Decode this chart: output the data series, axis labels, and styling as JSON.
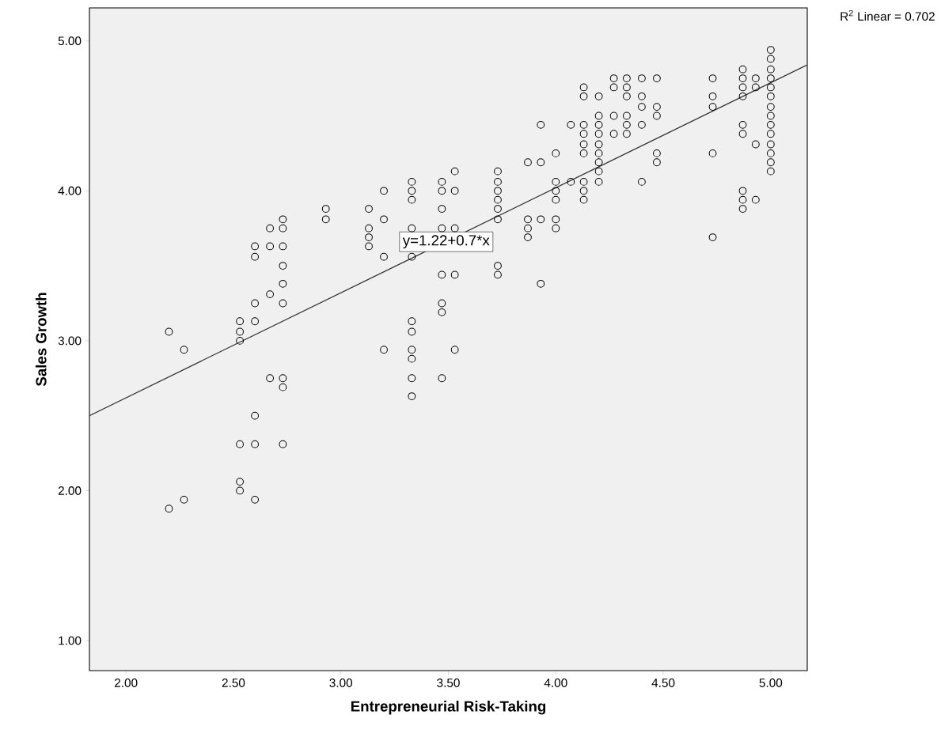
{
  "chart_data": {
    "type": "scatter",
    "xlabel": "Entrepreneurial Risk-Taking",
    "ylabel": "Sales Growth",
    "xlim": [
      1.83,
      5.17
    ],
    "ylim": [
      0.8,
      5.22
    ],
    "xticks": [
      {
        "value": 2,
        "label": "2.00"
      },
      {
        "value": 2.5,
        "label": "2.50"
      },
      {
        "value": 3,
        "label": "3.00"
      },
      {
        "value": 3.5,
        "label": "3.50"
      },
      {
        "value": 4,
        "label": "4.00"
      },
      {
        "value": 4.5,
        "label": "4.50"
      },
      {
        "value": 5,
        "label": "5.00"
      }
    ],
    "yticks": [
      {
        "value": 1,
        "label": "1.00"
      },
      {
        "value": 2,
        "label": "2.00"
      },
      {
        "value": 3,
        "label": "3.00"
      },
      {
        "value": 4,
        "label": "4.00"
      },
      {
        "value": 5,
        "label": "5.00"
      }
    ],
    "marker": "circle",
    "grid": false,
    "series": [
      {
        "color": "#000000",
        "x": [
          2.2,
          2.2,
          2.27,
          2.27,
          2.53,
          2.53,
          2.53,
          2.53,
          2.53,
          2.53,
          2.6,
          2.6,
          2.6,
          2.6,
          2.6,
          2.6,
          2.6,
          2.67,
          2.67,
          2.67,
          2.67,
          2.73,
          2.73,
          2.73,
          2.73,
          2.73,
          2.73,
          2.73,
          2.73,
          2.73,
          2.93,
          2.93,
          3.13,
          3.13,
          3.13,
          3.13,
          3.2,
          3.2,
          3.2,
          3.2,
          3.33,
          3.33,
          3.33,
          3.33,
          3.33,
          3.33,
          3.33,
          3.33,
          3.33,
          3.33,
          3.33,
          3.47,
          3.47,
          3.47,
          3.47,
          3.47,
          3.47,
          3.47,
          3.47,
          3.53,
          3.53,
          3.53,
          3.53,
          3.53,
          3.73,
          3.73,
          3.73,
          3.73,
          3.73,
          3.73,
          3.73,
          3.73,
          3.87,
          3.87,
          3.87,
          3.87,
          3.93,
          3.93,
          3.93,
          3.93,
          4.0,
          4.0,
          4.0,
          4.0,
          4.0,
          4.0,
          4.07,
          4.07,
          4.13,
          4.13,
          4.13,
          4.13,
          4.13,
          4.13,
          4.13,
          4.13,
          4.13,
          4.2,
          4.2,
          4.2,
          4.2,
          4.2,
          4.2,
          4.2,
          4.2,
          4.2,
          4.27,
          4.27,
          4.27,
          4.27,
          4.33,
          4.33,
          4.33,
          4.33,
          4.33,
          4.33,
          4.4,
          4.4,
          4.4,
          4.4,
          4.4,
          4.47,
          4.47,
          4.47,
          4.47,
          4.47,
          4.73,
          4.73,
          4.73,
          4.73,
          4.73,
          4.87,
          4.87,
          4.87,
          4.87,
          4.87,
          4.87,
          4.87,
          4.87,
          4.87,
          4.93,
          4.93,
          4.93,
          4.93,
          5.0,
          5.0,
          5.0,
          5.0,
          5.0,
          5.0,
          5.0,
          5.0,
          5.0,
          5.0,
          5.0,
          5.0,
          5.0,
          5.0
        ],
        "values": [
          3.06,
          1.88,
          2.94,
          1.94,
          3.13,
          3.06,
          3.0,
          2.31,
          2.06,
          2.0,
          3.63,
          3.56,
          3.25,
          3.13,
          2.5,
          2.31,
          1.94,
          3.75,
          3.63,
          3.31,
          2.75,
          3.81,
          3.75,
          3.63,
          3.5,
          3.38,
          3.25,
          2.75,
          2.69,
          2.31,
          3.88,
          3.81,
          3.88,
          3.75,
          3.69,
          3.63,
          4.0,
          3.81,
          3.56,
          2.94,
          4.06,
          4.0,
          3.94,
          3.75,
          3.56,
          3.13,
          3.06,
          2.94,
          2.88,
          2.75,
          2.63,
          4.06,
          4.0,
          3.88,
          3.75,
          3.44,
          3.25,
          3.19,
          2.75,
          4.13,
          4.0,
          3.75,
          3.44,
          2.94,
          4.13,
          4.06,
          4.0,
          3.94,
          3.88,
          3.81,
          3.5,
          3.44,
          4.19,
          3.81,
          3.75,
          3.69,
          4.44,
          4.19,
          3.81,
          3.38,
          4.25,
          4.06,
          4.0,
          3.94,
          3.81,
          3.75,
          4.44,
          4.06,
          4.69,
          4.63,
          4.44,
          4.38,
          4.31,
          4.25,
          4.06,
          4.0,
          3.94,
          4.63,
          4.5,
          4.44,
          4.38,
          4.31,
          4.25,
          4.19,
          4.13,
          4.06,
          4.75,
          4.69,
          4.5,
          4.38,
          4.75,
          4.69,
          4.63,
          4.5,
          4.44,
          4.38,
          4.75,
          4.63,
          4.56,
          4.44,
          4.06,
          4.75,
          4.56,
          4.5,
          4.25,
          4.19,
          4.75,
          4.63,
          4.56,
          4.25,
          3.69,
          4.81,
          4.75,
          4.69,
          4.63,
          4.44,
          4.38,
          4.0,
          3.94,
          3.88,
          4.75,
          4.69,
          4.31,
          3.94,
          4.94,
          4.88,
          4.81,
          4.75,
          4.69,
          4.63,
          4.56,
          4.5,
          4.44,
          4.38,
          4.31,
          4.25,
          4.19,
          4.13
        ]
      },
      {
        "type": "line",
        "marker": "none",
        "color": "#333333",
        "x": [
          1.83,
          5.17
        ],
        "values": [
          2.5,
          4.84
        ]
      }
    ],
    "annotations": [
      {
        "text": "y=1.22+0.7*x",
        "x": 3.49,
        "y": 3.66
      },
      "R$^{2}$ Linear = 0.702"
    ]
  }
}
